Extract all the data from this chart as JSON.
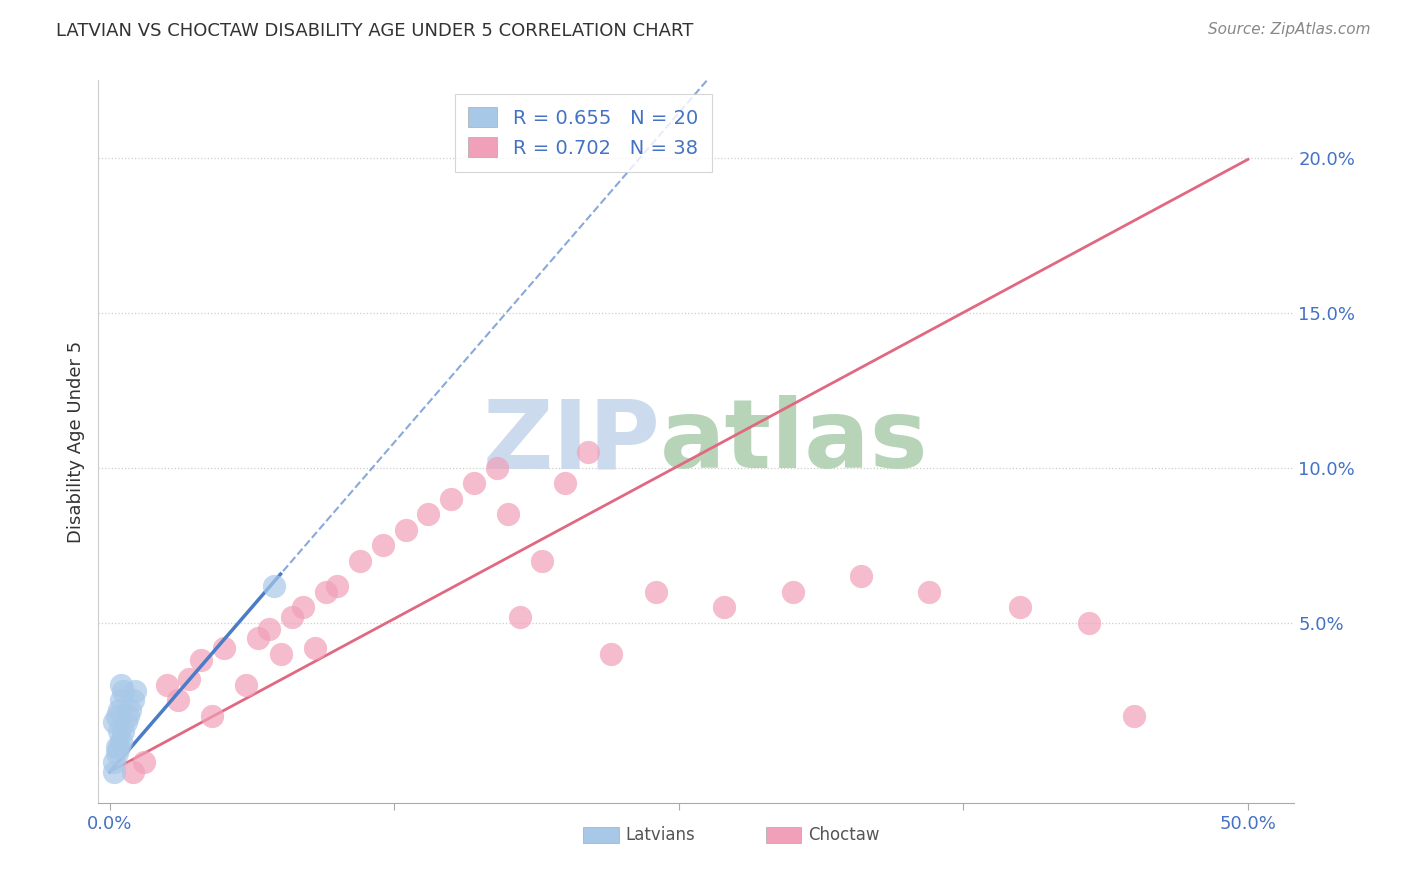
{
  "title": "LATVIAN VS CHOCTAW DISABILITY AGE UNDER 5 CORRELATION CHART",
  "source": "Source: ZipAtlas.com",
  "ylabel": "Disability Age Under 5",
  "xlim": [
    -0.005,
    0.52
  ],
  "ylim": [
    -0.008,
    0.225
  ],
  "latvian_R": 0.655,
  "latvian_N": 20,
  "choctaw_R": 0.702,
  "choctaw_N": 38,
  "latvian_color": "#a8c8e8",
  "choctaw_color": "#f0a0b8",
  "latvian_line_color": "#4a7cc7",
  "choctaw_line_color": "#e06880",
  "text_color": "#4472c4",
  "title_color": "#333333",
  "background_color": "#ffffff",
  "grid_color": "#c8c8c8",
  "watermark_zip_color": "#ccdaee",
  "watermark_atlas_color": "#b8d4b8",
  "latvian_x": [
    0.002,
    0.003,
    0.004,
    0.005,
    0.006,
    0.007,
    0.008,
    0.009,
    0.01,
    0.011,
    0.002,
    0.003,
    0.004,
    0.005,
    0.006,
    0.003,
    0.004,
    0.005,
    0.002,
    0.072
  ],
  "latvian_y": [
    0.005,
    0.008,
    0.01,
    0.012,
    0.015,
    0.018,
    0.02,
    0.022,
    0.025,
    0.028,
    0.018,
    0.02,
    0.022,
    0.025,
    0.028,
    0.01,
    0.015,
    0.03,
    0.002,
    0.062
  ],
  "choctaw_x": [
    0.01,
    0.015,
    0.025,
    0.03,
    0.035,
    0.04,
    0.045,
    0.05,
    0.06,
    0.065,
    0.07,
    0.075,
    0.08,
    0.085,
    0.09,
    0.095,
    0.1,
    0.11,
    0.12,
    0.13,
    0.14,
    0.15,
    0.16,
    0.17,
    0.175,
    0.18,
    0.19,
    0.2,
    0.21,
    0.22,
    0.24,
    0.27,
    0.3,
    0.33,
    0.36,
    0.4,
    0.43,
    0.45
  ],
  "choctaw_y": [
    0.002,
    0.005,
    0.03,
    0.025,
    0.032,
    0.038,
    0.02,
    0.042,
    0.03,
    0.045,
    0.048,
    0.04,
    0.052,
    0.055,
    0.042,
    0.06,
    0.062,
    0.07,
    0.075,
    0.08,
    0.085,
    0.09,
    0.095,
    0.1,
    0.085,
    0.052,
    0.07,
    0.095,
    0.105,
    0.04,
    0.06,
    0.055,
    0.06,
    0.065,
    0.06,
    0.055,
    0.05,
    0.02
  ],
  "lv_trend_x0": 0.0,
  "lv_trend_x1": 0.5,
  "ct_trend_x0": 0.0,
  "ct_trend_x1": 0.5
}
